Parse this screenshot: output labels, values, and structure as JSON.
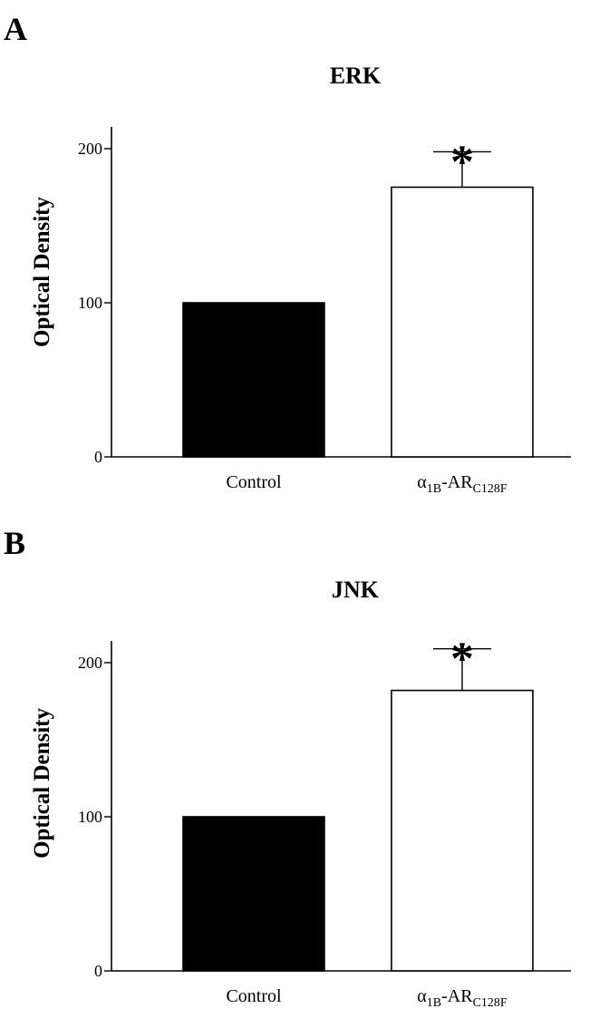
{
  "chart_data": [
    {
      "type": "bar",
      "panel_label": "A",
      "title": "ERK",
      "ylabel": "Optical Density",
      "xlabel": "",
      "ylim": [
        0,
        215
      ],
      "yticks": [
        0,
        100,
        200
      ],
      "categories": [
        {
          "main": "Control",
          "sub1": "",
          "mid": "",
          "sub2": ""
        },
        {
          "main": "α",
          "sub1": "1B",
          "mid": "-AR",
          "sub2": "C128F"
        }
      ],
      "values": [
        100,
        175
      ],
      "error_upper": [
        null,
        198
      ],
      "bar_colors": [
        "#000000",
        "#ffffff"
      ],
      "significance": [
        "",
        "*"
      ],
      "grid": false
    },
    {
      "type": "bar",
      "panel_label": "B",
      "title": "JNK",
      "ylabel": "Optical Density",
      "xlabel": "",
      "ylim": [
        0,
        215
      ],
      "yticks": [
        0,
        100,
        200
      ],
      "categories": [
        {
          "main": "Control",
          "sub1": "",
          "mid": "",
          "sub2": ""
        },
        {
          "main": "α",
          "sub1": "1B",
          "mid": "-AR",
          "sub2": "C128F"
        }
      ],
      "values": [
        100,
        182
      ],
      "error_upper": [
        null,
        209
      ],
      "bar_colors": [
        "#000000",
        "#ffffff"
      ],
      "significance": [
        "",
        "*"
      ],
      "grid": false
    }
  ]
}
